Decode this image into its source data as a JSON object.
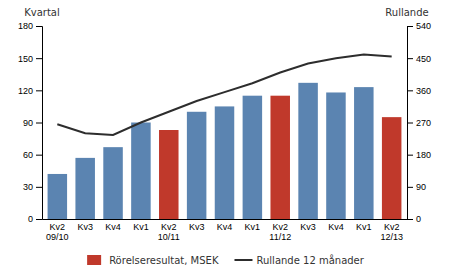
{
  "chart_data": {
    "type": "bar",
    "categories": [
      "Kv2\n09/10",
      "Kv3",
      "Kv4",
      "Kv1",
      "Kv2\n10/11",
      "Kv3",
      "Kv4",
      "Kv1",
      "Kv2\n11/12",
      "Kv3",
      "Kv4",
      "Kv1",
      "Kv2\n12/13"
    ],
    "series": [
      {
        "name": "Rörelseresultat, MSEK",
        "type": "bar",
        "color": "#c0392b",
        "colors": [
          "#5b84b1",
          "#5b84b1",
          "#5b84b1",
          "#5b84b1",
          "#c0392b",
          "#5b84b1",
          "#5b84b1",
          "#5b84b1",
          "#c0392b",
          "#5b84b1",
          "#5b84b1",
          "#5b84b1",
          "#c0392b"
        ],
        "values": [
          42,
          57,
          67,
          90,
          83,
          100,
          105,
          115,
          115,
          127,
          118,
          123,
          95
        ]
      },
      {
        "name": "Rullande 12 månader",
        "type": "line",
        "axis": "y2",
        "color": "#2d2d2d",
        "values": [
          265,
          240,
          235,
          270,
          300,
          330,
          355,
          380,
          410,
          435,
          450,
          460,
          455
        ]
      }
    ],
    "y_label": "Kvartal",
    "y2_label": "Rullande",
    "ylim": [
      0,
      180
    ],
    "yticks": [
      0,
      30,
      60,
      90,
      120,
      150,
      180
    ],
    "y2lim": [
      0,
      540
    ],
    "y2ticks": [
      0,
      90,
      180,
      270,
      360,
      450,
      540
    ],
    "grid": false,
    "legend": "bottom"
  }
}
